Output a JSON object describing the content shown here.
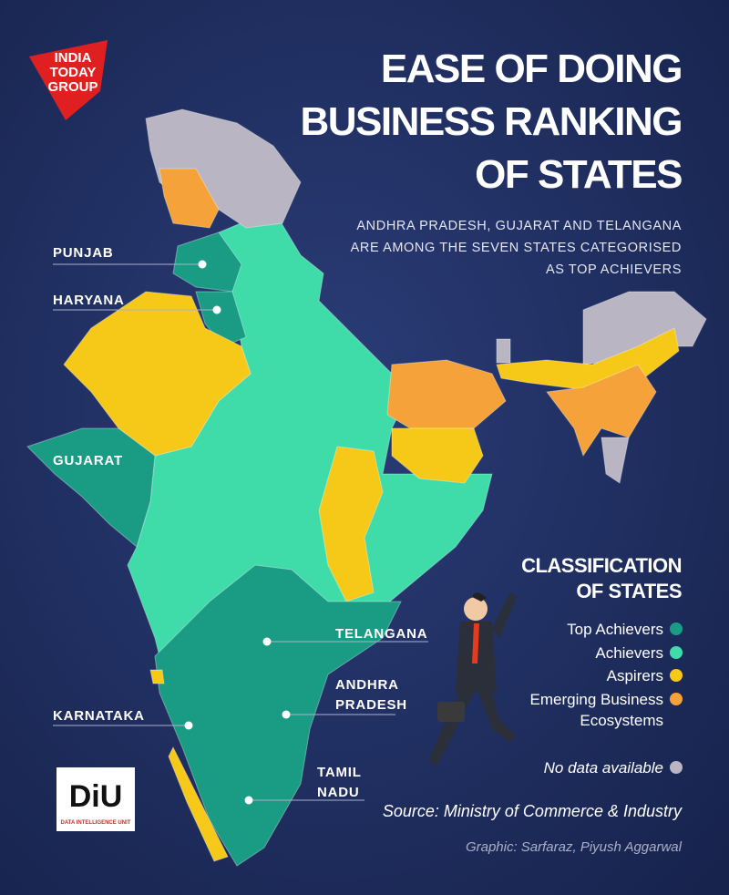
{
  "logo": {
    "lines": [
      "INDIA",
      "TODAY",
      "GROUP"
    ]
  },
  "header": {
    "title": [
      "EASE OF DOING",
      "BUSINESS RANKING",
      "OF STATES"
    ],
    "subtitle": [
      "ANDHRA PRADESH, GUJARAT AND TELANGANA",
      "ARE AMONG THE SEVEN STATES CATEGORISED",
      "AS TOP ACHIEVERS"
    ]
  },
  "map": {
    "labels": [
      {
        "text": [
          "PUNJAB"
        ]
      },
      {
        "text": [
          "HARYANA"
        ]
      },
      {
        "text": [
          "GUJARAT"
        ]
      },
      {
        "text": [
          "KARNATAKA"
        ]
      },
      {
        "text": [
          "TELANGANA"
        ]
      },
      {
        "text": [
          "ANDHRA",
          "PRADESH"
        ]
      },
      {
        "text": [
          "TAMIL",
          "NADU"
        ]
      }
    ]
  },
  "legend": {
    "title": [
      "CLASSIFICATION",
      "OF STATES"
    ],
    "items": [
      {
        "label": [
          "Top Achievers"
        ],
        "color": "#1a9c84"
      },
      {
        "label": [
          "Achievers"
        ],
        "color": "#3fdcaa"
      },
      {
        "label": [
          "Aspirers"
        ],
        "color": "#f6c817"
      },
      {
        "label": [
          "Emerging Business",
          "Ecosystems"
        ],
        "color": "#f4a239"
      },
      {
        "label": [
          "No data available"
        ],
        "color": "#b9b5c2"
      }
    ]
  },
  "source": "Source: Ministry of Commerce & Industry",
  "credit": "Graphic: Sarfaraz, Piyush Aggarwal",
  "diu": {
    "mark": "DiU",
    "caption": "DATA INTELLIGENCE UNIT"
  }
}
